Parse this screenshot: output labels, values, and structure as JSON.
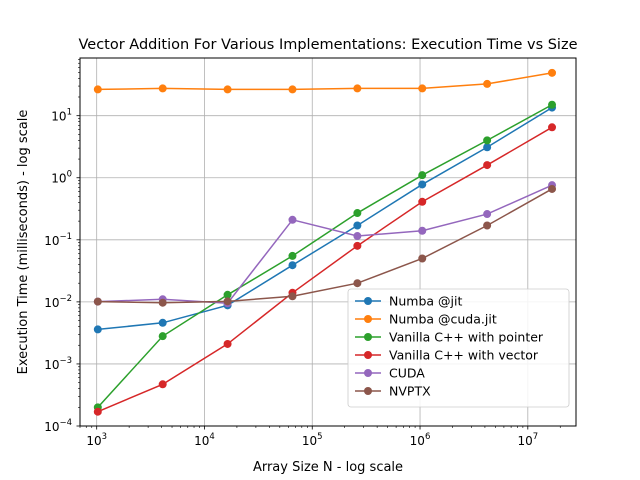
{
  "chart_data": {
    "type": "line",
    "title": "Vector Addition For Various Implementations: Execution Time vs Size",
    "xlabel": "Array Size N - log scale",
    "ylabel": "Execution Time (milliseconds) - log scale",
    "xscale": "log",
    "yscale": "log",
    "xlim": [
      700,
      28000000
    ],
    "ylim": [
      0.0001,
      85
    ],
    "grid": true,
    "legend_position": "lower right",
    "x_ticks": [
      1000,
      10000,
      100000,
      1000000,
      10000000
    ],
    "x_tick_labels": [
      {
        "base": "10",
        "exp": "3"
      },
      {
        "base": "10",
        "exp": "4"
      },
      {
        "base": "10",
        "exp": "5"
      },
      {
        "base": "10",
        "exp": "6"
      },
      {
        "base": "10",
        "exp": "7"
      }
    ],
    "y_ticks": [
      0.0001,
      0.001,
      0.01,
      0.1,
      1,
      10
    ],
    "y_tick_labels": [
      {
        "base": "10",
        "exp": "−4"
      },
      {
        "base": "10",
        "exp": "−3"
      },
      {
        "base": "10",
        "exp": "−2"
      },
      {
        "base": "10",
        "exp": "−1"
      },
      {
        "base": "10",
        "exp": "0"
      },
      {
        "base": "10",
        "exp": "1"
      }
    ],
    "x": [
      1024,
      4096,
      16384,
      65536,
      262144,
      1048576,
      4194304,
      16777216
    ],
    "series": [
      {
        "name": "Numba @jit",
        "color": "#1f77b4",
        "values": [
          0.0036,
          0.0046,
          0.0088,
          0.039,
          0.17,
          0.78,
          3.1,
          13.5
        ]
      },
      {
        "name": "Numba @cuda.jit",
        "color": "#ff7f0e",
        "values": [
          26.5,
          27.5,
          26.5,
          26.5,
          27.5,
          27.5,
          32.5,
          49
        ]
      },
      {
        "name": "Vanilla C++ with pointer",
        "color": "#2ca02c",
        "values": [
          0.0002,
          0.0028,
          0.013,
          0.055,
          0.27,
          1.1,
          4.0,
          15
        ]
      },
      {
        "name": "Vanilla C++ with vector",
        "color": "#d62728",
        "values": [
          0.00017,
          0.00047,
          0.0021,
          0.014,
          0.08,
          0.41,
          1.6,
          6.5
        ]
      },
      {
        "name": "CUDA",
        "color": "#9467bd",
        "values": [
          0.0101,
          0.011,
          0.0095,
          0.21,
          0.115,
          0.14,
          0.26,
          0.76
        ]
      },
      {
        "name": "NVPTX",
        "color": "#8c564b",
        "values": [
          0.0101,
          0.0097,
          0.0102,
          0.0123,
          0.02,
          0.05,
          0.17,
          0.66
        ]
      }
    ]
  }
}
